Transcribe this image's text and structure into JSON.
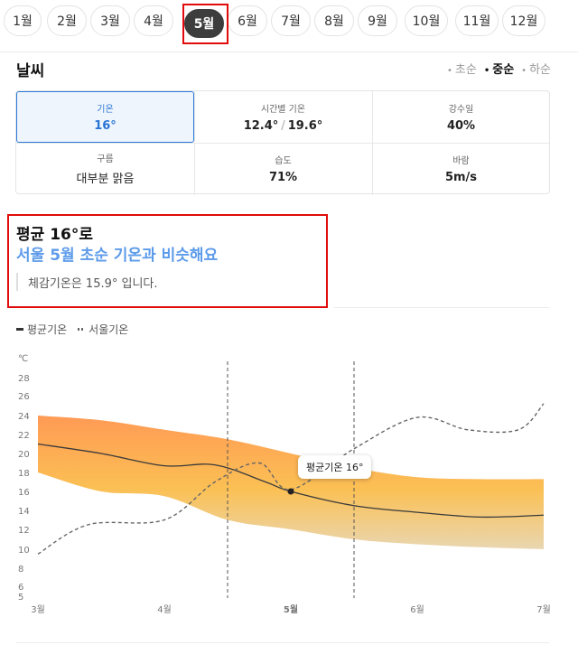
{
  "months": [
    "1월",
    "2월",
    "3월",
    "4월",
    "5월",
    "6월",
    "7월",
    "8월",
    "9월",
    "10월",
    "11월",
    "12월"
  ],
  "selected_month": "5월",
  "weather": {
    "title": "날씨",
    "season_tabs": [
      {
        "label": "초순",
        "active": false
      },
      {
        "label": "중순",
        "active": true
      },
      {
        "label": "하순",
        "active": false
      }
    ],
    "cells": [
      {
        "label": "기온",
        "value": "16°",
        "selected": true
      },
      {
        "label": "시간별 기온",
        "value_low": "12.4°",
        "value_high": "19.6°",
        "separator": "/"
      },
      {
        "label": "강수일",
        "value": "40%"
      },
      {
        "label": "구름",
        "value": "대부분 맑음"
      },
      {
        "label": "습도",
        "value": "71%"
      },
      {
        "label": "바람",
        "value": "5m/s"
      }
    ]
  },
  "summary": {
    "title": "평균 16°로",
    "subtitle": "서울 5월 초순 기온과 비슷해요",
    "feels_like": "체감기온은 15.9° 입니다."
  },
  "chart_data": {
    "type": "line",
    "unit": "℃",
    "legend": [
      "평균기온",
      "서울기온"
    ],
    "y_ticks": [
      5,
      6,
      8,
      10,
      12,
      14,
      16,
      18,
      20,
      22,
      24,
      26,
      28
    ],
    "x_labels": [
      "3월",
      "4월",
      "5월",
      "6월",
      "7월"
    ],
    "x_positions": [
      0,
      1,
      2,
      3,
      4
    ],
    "tooltip": "평균기온 16°",
    "highlight_x": 2,
    "highlight_y": 16,
    "series": [
      {
        "name": "평균기온",
        "x": [
          0,
          0.5,
          1,
          1.4,
          1.8,
          2,
          2.5,
          3,
          3.5,
          4
        ],
        "y": [
          21,
          20,
          18.7,
          18.8,
          17,
          16,
          14.5,
          13.8,
          13.3,
          13.5
        ]
      },
      {
        "name": "서울기온",
        "x": [
          0,
          0.4,
          1,
          1.4,
          1.75,
          2,
          2.5,
          3,
          3.4,
          3.8,
          4
        ],
        "y": [
          9.5,
          12.5,
          13,
          17,
          19,
          16.2,
          20.5,
          23.8,
          22.5,
          22.5,
          25.2
        ]
      }
    ],
    "band_upper": {
      "x": [
        0,
        0.5,
        1,
        1.5,
        2,
        2.5,
        3,
        3.5,
        4
      ],
      "y": [
        24,
        23.5,
        22.5,
        21.5,
        20,
        18.5,
        17.5,
        17.3,
        17.3
      ]
    },
    "band_lower": {
      "x": [
        0,
        0.5,
        1,
        1.5,
        2,
        2.5,
        3,
        3.5,
        4
      ],
      "y": [
        18,
        16,
        15.5,
        13,
        12,
        11,
        10.5,
        10.2,
        10
      ]
    },
    "dashed_markers_x": [
      1.5,
      2.5
    ]
  }
}
